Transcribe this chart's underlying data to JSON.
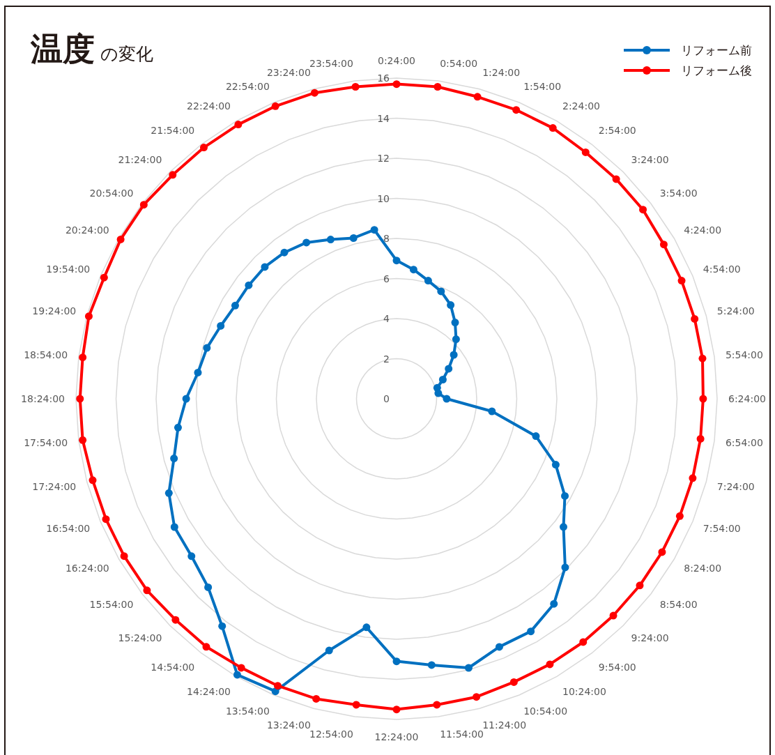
{
  "chart_data": {
    "type": "radar",
    "title": "**温度** の変化",
    "categories": [
      "0:24:00",
      "0:54:00",
      "1:24:00",
      "1:54:00",
      "2:24:00",
      "2:54:00",
      "3:24:00",
      "3:54:00",
      "4:24:00",
      "4:54:00",
      "5:24:00",
      "5:54:00",
      "6:24:00",
      "6:54:00",
      "7:24:00",
      "7:54:00",
      "8:24:00",
      "8:54:00",
      "9:24:00",
      "9:54:00",
      "10:24:00",
      "10:54:00",
      "11:24:00",
      "11:54:00",
      "12:24:00",
      "12:54:00",
      "13:24:00",
      "13:54:00",
      "14:24:00",
      "14:54:00",
      "15:24:00",
      "15:54:00",
      "16:24:00",
      "16:54:00",
      "17:24:00",
      "17:54:00",
      "18:24:00",
      "18:54:00",
      "19:24:00",
      "19:54:00",
      "20:24:00",
      "20:54:00",
      "21:24:00",
      "21:54:00",
      "22:24:00",
      "22:54:00",
      "23:24:00",
      "23:54:00"
    ],
    "series": [
      {
        "name": "リフォーム前",
        "color": "#0070c0",
        "values": [
          6.9,
          6.5,
          6.1,
          5.8,
          5.4,
          4.8,
          4.2,
          3.6,
          3.0,
          2.5,
          2.1,
          2.1,
          2.5,
          4.8,
          7.2,
          8.6,
          9.7,
          10.5,
          11.9,
          12.9,
          13.4,
          13.4,
          13.9,
          13.4,
          13.1,
          11.5,
          13.0,
          15.8,
          15.9,
          14.3,
          13.3,
          12.9,
          12.8,
          12.3,
          11.5,
          11.0,
          10.5,
          10.0,
          9.8,
          9.5,
          9.3,
          9.3,
          9.3,
          9.2,
          9.0,
          8.6,
          8.3,
          8.5
        ]
      },
      {
        "name": "リフォーム後",
        "color": "#ff0000",
        "values": [
          15.7,
          15.7,
          15.6,
          15.6,
          15.6,
          15.5,
          15.5,
          15.5,
          15.4,
          15.4,
          15.4,
          15.4,
          15.3,
          15.3,
          15.3,
          15.3,
          15.3,
          15.3,
          15.3,
          15.3,
          15.3,
          15.3,
          15.4,
          15.4,
          15.5,
          15.4,
          15.5,
          15.5,
          15.5,
          15.6,
          15.6,
          15.7,
          15.7,
          15.7,
          15.7,
          15.8,
          15.8,
          15.8,
          15.9,
          15.8,
          15.9,
          15.9,
          15.8,
          15.8,
          15.8,
          15.8,
          15.8,
          15.7
        ]
      }
    ],
    "ylim": [
      0,
      16
    ],
    "yticks": [
      0,
      2,
      4,
      6,
      8,
      10,
      12,
      14,
      16
    ],
    "grid": true,
    "marker": "circle",
    "legend": "top right"
  }
}
